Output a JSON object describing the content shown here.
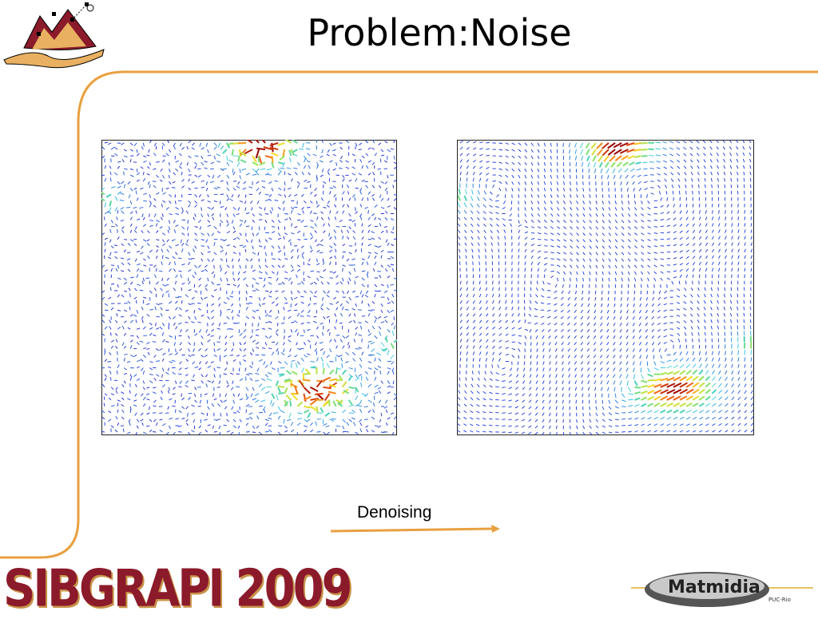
{
  "slide": {
    "title": "Problem:Noise",
    "caption": "Denoising",
    "footer_brand": "SIBGRAPI 2009",
    "partner_logo": "Matmidia",
    "partner_sub": "PUC-Rio"
  },
  "colors": {
    "frame_line": "#e8a040",
    "brand_text": "#8b1a2a",
    "arrow_blue": "#1a2ad8",
    "hotspot_red": "#b80000"
  },
  "icons": {
    "top_left_logo": "mountain-logo-icon",
    "arrow": "right-arrow-icon"
  }
}
